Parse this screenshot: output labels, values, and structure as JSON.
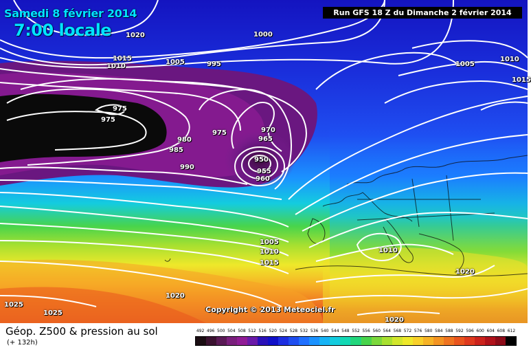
{
  "header": {
    "date": "Samedi 8 février 2014",
    "time": "7:00 locale",
    "run": "Run GFS 18 Z du Dimanche 2 février 2014"
  },
  "copyright": "Copyright © 2013 Meteociel.fr",
  "legend": {
    "title": "Géop. Z500 & pression au sol",
    "subtitle": "(+ 132h)",
    "scale_values": [
      "492",
      "496",
      "500",
      "504",
      "508",
      "512",
      "516",
      "520",
      "524",
      "528",
      "532",
      "536",
      "540",
      "544",
      "548",
      "552",
      "556",
      "560",
      "564",
      "568",
      "572",
      "576",
      "580",
      "584",
      "588",
      "592",
      "596",
      "600",
      "604",
      "608",
      "612"
    ],
    "scale_colors": [
      "#1a0d12",
      "#3b1230",
      "#5a1a55",
      "#7a1f7c",
      "#901c95",
      "#6a1aa8",
      "#2a10b8",
      "#1010c8",
      "#1c2ee0",
      "#1f4ef0",
      "#2070ff",
      "#1b92ff",
      "#17b3f5",
      "#14ccdf",
      "#12d8b4",
      "#22d67c",
      "#48d44c",
      "#7bd83c",
      "#a8e030",
      "#d2e62c",
      "#eee82a",
      "#f8d02a",
      "#f6b326",
      "#f39422",
      "#ef7420",
      "#e9551e",
      "#df3a1e",
      "#cc231c",
      "#b0121a",
      "#8c0b18",
      "#000000"
    ]
  },
  "isobar_labels": {
    "l1020a": "1020",
    "l1015a": "1015",
    "l1010a": "1010",
    "l1005a": "1005",
    "l995": "995",
    "l1000": "1000",
    "l1005b": "1005",
    "l1010b": "1010",
    "l1015b": "1015",
    "l975a": "975",
    "l975b": "975",
    "l975c": "975",
    "l980": "980",
    "l985": "985",
    "l990": "990",
    "l970": "970",
    "l965": "965",
    "l950": "950",
    "l955": "955",
    "l960": "960",
    "l1005c": "1005",
    "l1010c": "1010",
    "l1015c": "1015",
    "l1010d": "1010",
    "l1020b": "1020",
    "l1020c": "1020",
    "l1025a": "1025",
    "l1025b": "1025",
    "l1020d": "1020"
  },
  "colors": {
    "low_core": "#0a0a0a",
    "deep_purple": "#6a1780",
    "blue": "#1a10c8",
    "cyan": "#17b3f5",
    "green": "#4cd24c",
    "yellow": "#f0e02a",
    "orange": "#f39422",
    "red": "#df3a1e"
  }
}
